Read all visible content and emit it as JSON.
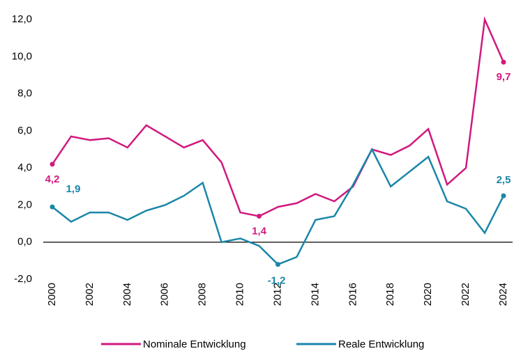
{
  "chart_data": {
    "type": "line",
    "x": [
      2000,
      2001,
      2002,
      2003,
      2004,
      2005,
      2006,
      2007,
      2008,
      2009,
      2010,
      2011,
      2012,
      2013,
      2014,
      2015,
      2016,
      2017,
      2018,
      2019,
      2020,
      2021,
      2022,
      2023,
      2024
    ],
    "series": [
      {
        "name": "Nominale Entwicklung",
        "color": "#d0197e",
        "values": [
          4.2,
          5.7,
          5.5,
          5.6,
          5.1,
          6.3,
          5.7,
          5.1,
          5.5,
          4.3,
          1.6,
          1.4,
          1.9,
          2.1,
          2.6,
          2.2,
          3.0,
          5.0,
          4.7,
          5.2,
          6.1,
          3.1,
          4.0,
          12.0,
          9.7
        ],
        "value_labels": [
          "4,2",
          null,
          null,
          null,
          null,
          null,
          null,
          null,
          null,
          null,
          null,
          "1,4",
          null,
          null,
          null,
          null,
          null,
          null,
          null,
          null,
          null,
          null,
          null,
          null,
          "9,7"
        ]
      },
      {
        "name": "Reale Entwicklung",
        "color": "#1a86a8",
        "values": [
          1.9,
          1.1,
          1.6,
          1.6,
          1.2,
          1.7,
          2.0,
          2.5,
          3.2,
          0.0,
          0.2,
          -0.2,
          -1.2,
          -0.8,
          1.2,
          1.4,
          3.1,
          5.0,
          3.0,
          3.8,
          4.6,
          2.2,
          1.8,
          0.5,
          2.5
        ],
        "value_labels": [
          "1,9",
          null,
          null,
          null,
          null,
          null,
          null,
          null,
          null,
          null,
          null,
          null,
          "-1,2",
          null,
          null,
          null,
          null,
          null,
          null,
          null,
          null,
          null,
          null,
          null,
          "2,5"
        ]
      }
    ],
    "xlim": [
      2000,
      2024
    ],
    "xticks": [
      2000,
      2002,
      2004,
      2006,
      2008,
      2010,
      2012,
      2014,
      2016,
      2018,
      2020,
      2022,
      2024
    ],
    "ylim": [
      -2,
      12
    ],
    "yticks": [
      {
        "value": -2,
        "label": "-2,0"
      },
      {
        "value": 0,
        "label": "0,0"
      },
      {
        "value": 2,
        "label": "2,0"
      },
      {
        "value": 4,
        "label": "4,0"
      },
      {
        "value": 6,
        "label": "6,0"
      },
      {
        "value": 8,
        "label": "8,0"
      },
      {
        "value": 10,
        "label": "10,0"
      },
      {
        "value": 12,
        "label": "12,0"
      }
    ],
    "legend": "bottom"
  }
}
